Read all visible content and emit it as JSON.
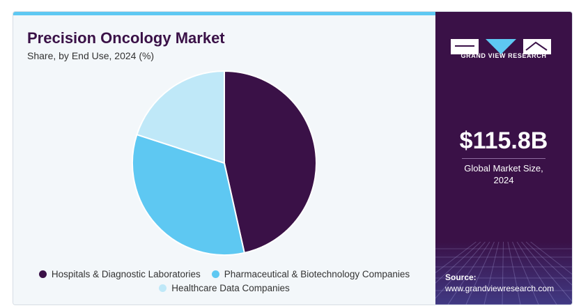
{
  "chart_data": {
    "type": "pie",
    "title": "Precision Oncology Market",
    "subtitle": "Share, by End Use, 2024 (%)",
    "categories": [
      "Hospitals & Diagnostic Laboratories",
      "Pharmaceutical & Biotechnology Companies",
      "Healthcare Data Companies"
    ],
    "values": [
      46.5,
      33.5,
      20.0
    ],
    "colors": [
      "#3a1147",
      "#5ec8f2",
      "#bfe8f8"
    ],
    "legend_position": "bottom"
  },
  "sidebar": {
    "brand": "GRAND VIEW RESEARCH",
    "market_value": "$115.8B",
    "market_label_line1": "Global Market Size,",
    "market_label_line2": "2024",
    "source_label": "Source:",
    "source_url": "www.grandviewresearch.com"
  },
  "colors": {
    "brand_dark": "#3a1147",
    "accent_blue": "#5ec8f2",
    "panel_bg": "#f3f7fa"
  }
}
